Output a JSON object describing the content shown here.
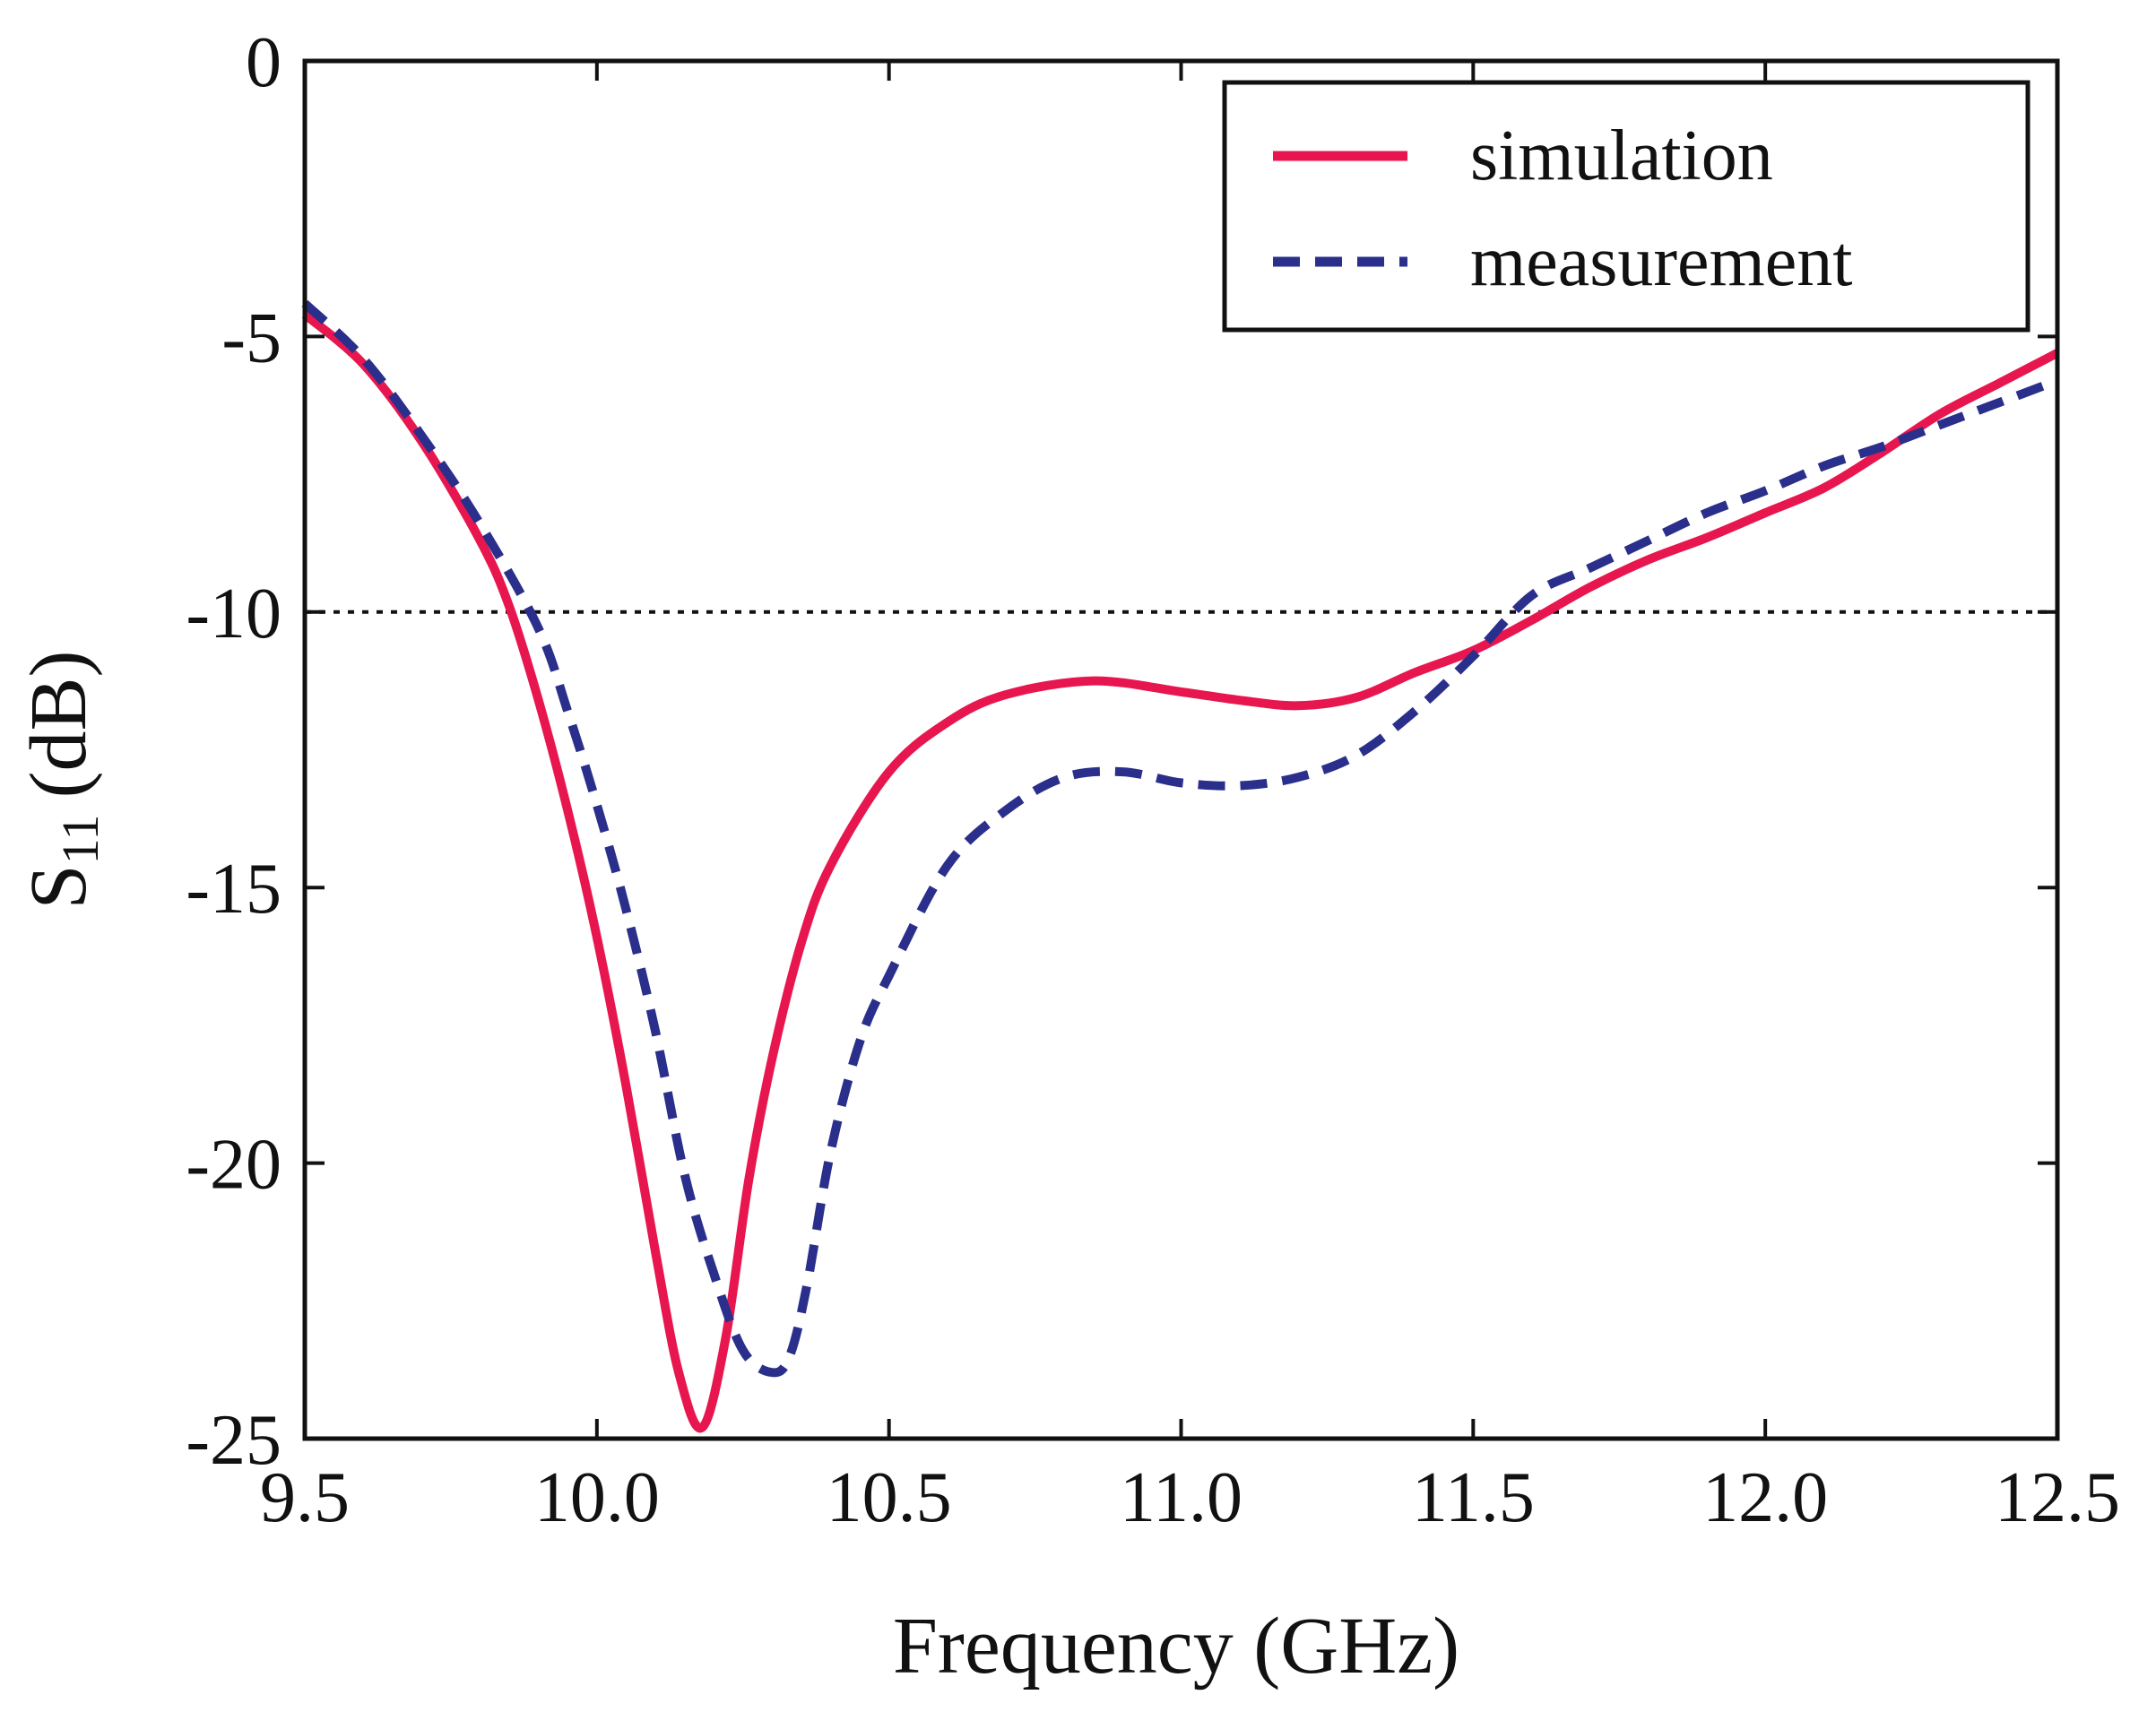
{
  "chart_data": {
    "type": "line",
    "title": "",
    "xlabel": "Frequency (GHz)",
    "ylabel": "S11 (dB)",
    "ylabel_main": "S",
    "ylabel_sub": "11",
    "ylabel_unit": "(dB)",
    "xlim": [
      9.5,
      12.5
    ],
    "ylim": [
      -25,
      0
    ],
    "xticks": [
      9.5,
      10.0,
      10.5,
      11.0,
      11.5,
      12.0,
      12.5
    ],
    "xtick_labels": [
      "9.5",
      "10.0",
      "10.5",
      "11.0",
      "11.5",
      "12.0",
      "12.5"
    ],
    "yticks": [
      0,
      -5,
      -10,
      -15,
      -20,
      -25
    ],
    "ytick_labels": [
      "0",
      "-5",
      "-10",
      "-15",
      "-20",
      "-25"
    ],
    "grid": false,
    "legend_position": "top-right",
    "reference_line": {
      "y": -10,
      "style": "dotted",
      "color": "#111111"
    },
    "series": [
      {
        "name": "simulation",
        "style": "solid",
        "color": "#e8164f",
        "x": [
          9.5,
          9.6,
          9.7,
          9.8,
          9.85,
          9.9,
          9.95,
          10.0,
          10.05,
          10.1,
          10.14,
          10.18,
          10.22,
          10.26,
          10.3,
          10.35,
          10.4,
          10.5,
          10.6,
          10.7,
          10.85,
          11.0,
          11.1,
          11.2,
          11.3,
          11.4,
          11.5,
          11.6,
          11.7,
          11.8,
          11.9,
          12.0,
          12.1,
          12.2,
          12.3,
          12.4,
          12.5
        ],
        "y": [
          -4.6,
          -5.5,
          -6.9,
          -8.7,
          -9.9,
          -11.6,
          -13.6,
          -15.9,
          -18.6,
          -21.6,
          -23.8,
          -24.8,
          -23.2,
          -20.3,
          -18.1,
          -16.0,
          -14.6,
          -12.9,
          -12.0,
          -11.5,
          -11.25,
          -11.45,
          -11.6,
          -11.7,
          -11.55,
          -11.1,
          -10.7,
          -10.15,
          -9.55,
          -9.05,
          -8.65,
          -8.2,
          -7.75,
          -7.1,
          -6.4,
          -5.85,
          -5.3
        ]
      },
      {
        "name": "measurement",
        "style": "dashed",
        "color": "#2b2f8c",
        "x": [
          9.5,
          9.6,
          9.7,
          9.8,
          9.9,
          9.95,
          10.0,
          10.05,
          10.1,
          10.15,
          10.2,
          10.25,
          10.3,
          10.33,
          10.36,
          10.4,
          10.45,
          10.5,
          10.6,
          10.7,
          10.8,
          10.9,
          11.0,
          11.1,
          11.2,
          11.3,
          11.4,
          11.5,
          11.6,
          11.7,
          11.8,
          11.9,
          12.0,
          12.1,
          12.2,
          12.3,
          12.4,
          12.5
        ],
        "y": [
          -4.4,
          -5.4,
          -6.8,
          -8.4,
          -10.3,
          -11.8,
          -13.5,
          -15.4,
          -17.6,
          -20.2,
          -22.0,
          -23.4,
          -23.8,
          -23.5,
          -22.2,
          -19.8,
          -17.8,
          -16.6,
          -14.6,
          -13.6,
          -13.0,
          -12.9,
          -13.1,
          -13.15,
          -13.0,
          -12.6,
          -11.8,
          -10.8,
          -9.7,
          -9.2,
          -8.7,
          -8.2,
          -7.8,
          -7.35,
          -7.0,
          -6.6,
          -6.2,
          -5.8
        ]
      }
    ]
  }
}
